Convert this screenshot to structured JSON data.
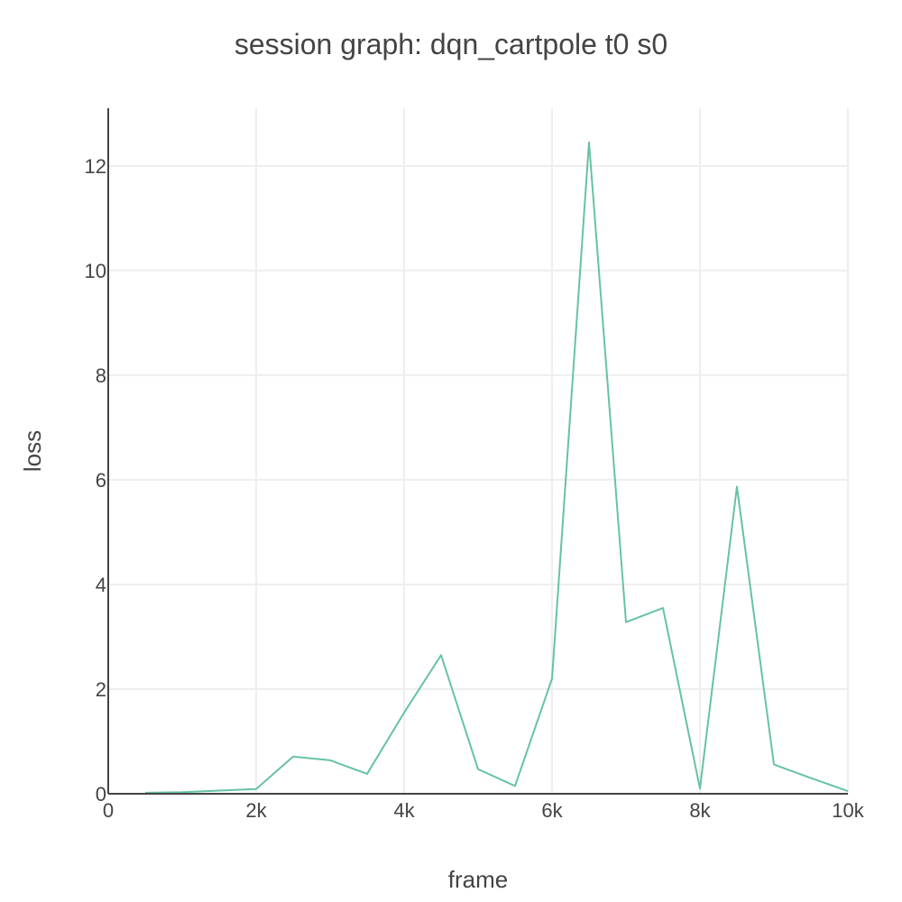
{
  "chart_data": {
    "type": "line",
    "title": "session graph: dqn_cartpole t0 s0",
    "xlabel": "frame",
    "ylabel": "loss",
    "xlim": [
      0,
      10000
    ],
    "ylim": [
      0,
      13.1
    ],
    "x_ticks": [
      {
        "value": 0,
        "label": "0"
      },
      {
        "value": 2000,
        "label": "2k"
      },
      {
        "value": 4000,
        "label": "4k"
      },
      {
        "value": 6000,
        "label": "6k"
      },
      {
        "value": 8000,
        "label": "8k"
      },
      {
        "value": 10000,
        "label": "10k"
      }
    ],
    "y_ticks": [
      {
        "value": 0,
        "label": "0"
      },
      {
        "value": 2,
        "label": "2"
      },
      {
        "value": 4,
        "label": "4"
      },
      {
        "value": 6,
        "label": "6"
      },
      {
        "value": 8,
        "label": "8"
      },
      {
        "value": 10,
        "label": "10"
      },
      {
        "value": 12,
        "label": "12"
      }
    ],
    "grid": true,
    "legend": "none",
    "series": [
      {
        "color": "#66c2a5",
        "x": [
          500,
          1000,
          1500,
          2000,
          2500,
          3000,
          3500,
          4000,
          4500,
          5000,
          5500,
          6000,
          6500,
          7000,
          7500,
          8000,
          8500,
          9000,
          9500,
          10000
        ],
        "y": [
          0.02,
          0.03,
          0.06,
          0.09,
          0.71,
          0.64,
          0.38,
          1.55,
          2.65,
          0.47,
          0.15,
          2.2,
          12.45,
          3.28,
          3.55,
          0.1,
          5.87,
          0.56,
          0.3,
          0.05
        ]
      }
    ]
  }
}
